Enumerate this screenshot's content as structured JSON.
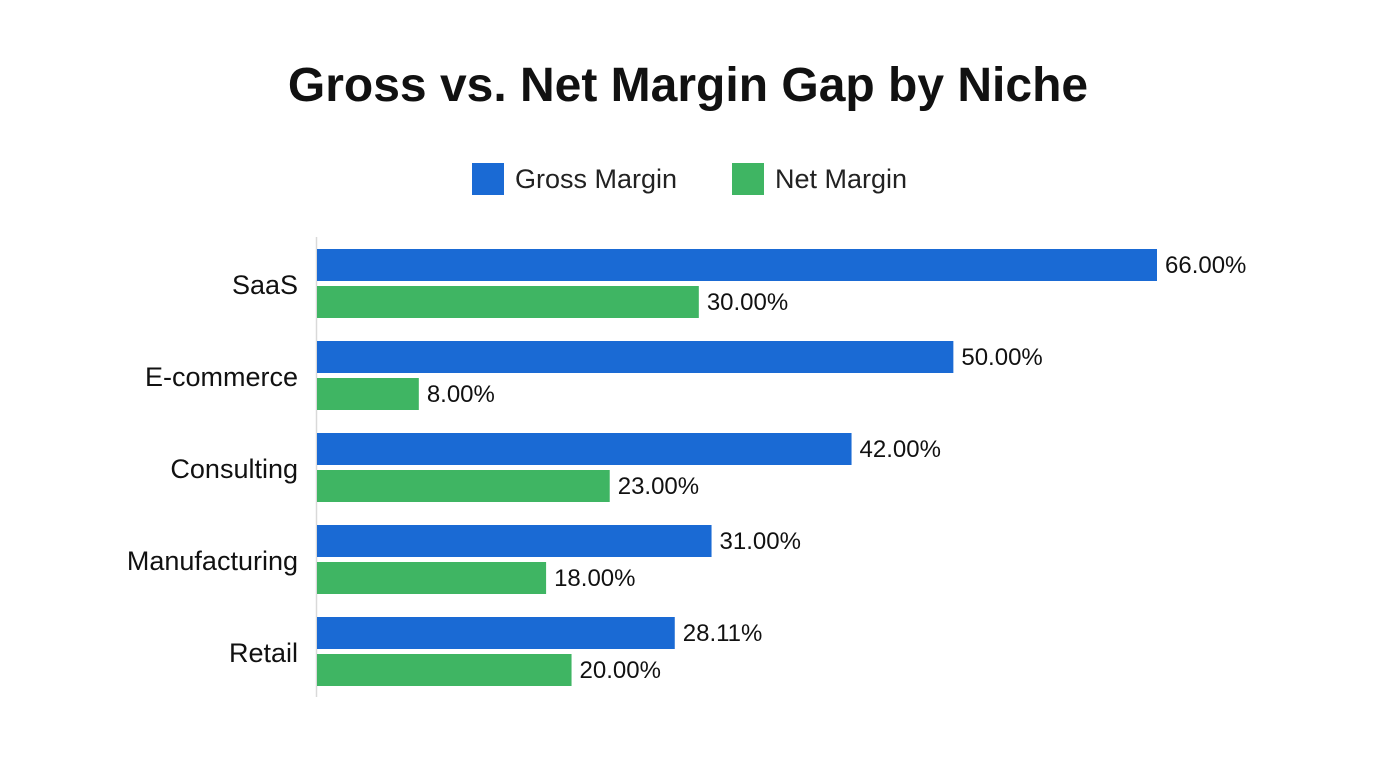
{
  "chart_data": {
    "type": "bar",
    "orientation": "horizontal",
    "title": "Gross vs. Net Margin Gap by Niche",
    "categories": [
      "SaaS",
      "E-commerce",
      "Consulting",
      "Manufacturing",
      "Retail"
    ],
    "series": [
      {
        "name": "Gross Margin",
        "color": "#1a6ad4",
        "values": [
          66.0,
          50.0,
          42.0,
          31.0,
          28.11
        ],
        "labels": [
          "66.00%",
          "50.00%",
          "42.00%",
          "31.00%",
          "28.11%"
        ]
      },
      {
        "name": "Net Margin",
        "color": "#3fb563",
        "values": [
          30.0,
          8.0,
          23.0,
          18.0,
          20.0
        ],
        "labels": [
          "30.00%",
          "8.00%",
          "23.00%",
          "18.00%",
          "20.00%"
        ]
      }
    ],
    "xlim": [
      0,
      66
    ],
    "legend_position": "top-center",
    "grid": false,
    "axis_line_color": "#d9d9d9"
  }
}
